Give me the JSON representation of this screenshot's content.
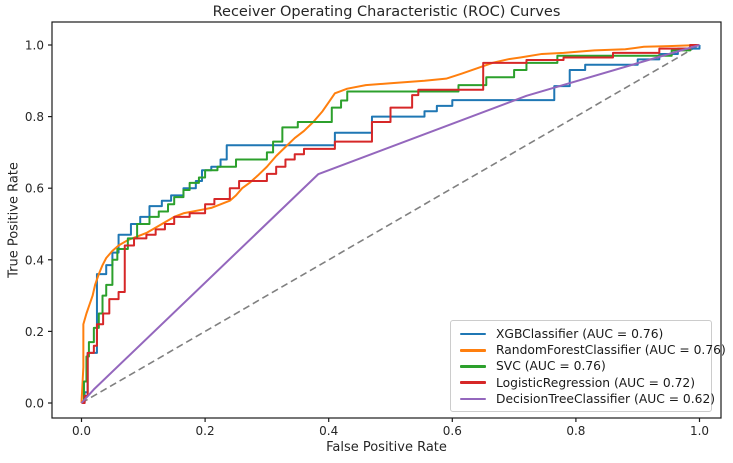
{
  "chart_data": {
    "type": "line",
    "title": "Receiver Operating Characteristic (ROC) Curves",
    "xlabel": "False Positive Rate",
    "ylabel": "True Positive Rate",
    "xlim": [
      -0.05,
      1.05
    ],
    "ylim": [
      -0.05,
      1.05
    ],
    "grid": false,
    "x_ticks": {
      "values": [
        0.0,
        0.2,
        0.4,
        0.6,
        0.8,
        1.0
      ],
      "labels": [
        "0.0",
        "0.2",
        "0.4",
        "0.6",
        "0.8",
        "1.0"
      ]
    },
    "y_ticks": {
      "values": [
        0.0,
        0.2,
        0.4,
        0.6,
        0.8,
        1.0
      ],
      "labels": [
        "0.0",
        "0.2",
        "0.4",
        "0.6",
        "0.8",
        "1.0"
      ]
    },
    "legend": {
      "position": "lower right"
    },
    "baseline": {
      "name": "chance-diagonal",
      "color": "#808080",
      "dash": true,
      "points": [
        [
          0,
          0
        ],
        [
          1,
          1
        ]
      ]
    },
    "series": [
      {
        "name": "XGBClassifier",
        "auc": 0.76,
        "label": "XGBClassifier (AUC = 0.76)",
        "color": "#1f77b4",
        "points": [
          [
            0,
            0
          ],
          [
            0.005,
            0
          ],
          [
            0.005,
            0.03
          ],
          [
            0.01,
            0.03
          ],
          [
            0.01,
            0.14
          ],
          [
            0.025,
            0.14
          ],
          [
            0.025,
            0.36
          ],
          [
            0.04,
            0.36
          ],
          [
            0.04,
            0.385
          ],
          [
            0.05,
            0.385
          ],
          [
            0.05,
            0.42
          ],
          [
            0.06,
            0.42
          ],
          [
            0.06,
            0.47
          ],
          [
            0.08,
            0.47
          ],
          [
            0.08,
            0.5
          ],
          [
            0.095,
            0.5
          ],
          [
            0.095,
            0.52
          ],
          [
            0.11,
            0.52
          ],
          [
            0.11,
            0.55
          ],
          [
            0.13,
            0.55
          ],
          [
            0.13,
            0.565
          ],
          [
            0.145,
            0.565
          ],
          [
            0.145,
            0.58
          ],
          [
            0.165,
            0.58
          ],
          [
            0.165,
            0.6
          ],
          [
            0.185,
            0.6
          ],
          [
            0.185,
            0.62
          ],
          [
            0.195,
            0.62
          ],
          [
            0.195,
            0.65
          ],
          [
            0.21,
            0.65
          ],
          [
            0.21,
            0.66
          ],
          [
            0.225,
            0.66
          ],
          [
            0.225,
            0.68
          ],
          [
            0.235,
            0.68
          ],
          [
            0.235,
            0.72
          ],
          [
            0.41,
            0.72
          ],
          [
            0.41,
            0.755
          ],
          [
            0.47,
            0.755
          ],
          [
            0.47,
            0.8
          ],
          [
            0.555,
            0.8
          ],
          [
            0.555,
            0.815
          ],
          [
            0.575,
            0.815
          ],
          [
            0.575,
            0.83
          ],
          [
            0.6,
            0.83
          ],
          [
            0.6,
            0.846
          ],
          [
            0.765,
            0.846
          ],
          [
            0.765,
            0.885
          ],
          [
            0.79,
            0.885
          ],
          [
            0.79,
            0.93
          ],
          [
            0.815,
            0.93
          ],
          [
            0.815,
            0.945
          ],
          [
            0.9,
            0.945
          ],
          [
            0.9,
            0.96
          ],
          [
            0.935,
            0.96
          ],
          [
            0.935,
            0.975
          ],
          [
            0.965,
            0.975
          ],
          [
            0.965,
            0.99
          ],
          [
            1,
            0.99
          ],
          [
            1,
            1
          ]
        ]
      },
      {
        "name": "RandomForestClassifier",
        "auc": 0.76,
        "label": "RandomForestClassifier (AUC = 0.76)",
        "color": "#ff7f0e",
        "points": [
          [
            0,
            0
          ],
          [
            0.003,
            0.1
          ],
          [
            0.003,
            0.22
          ],
          [
            0.008,
            0.25
          ],
          [
            0.012,
            0.27
          ],
          [
            0.018,
            0.3
          ],
          [
            0.022,
            0.33
          ],
          [
            0.028,
            0.36
          ],
          [
            0.034,
            0.385
          ],
          [
            0.04,
            0.405
          ],
          [
            0.05,
            0.425
          ],
          [
            0.06,
            0.44
          ],
          [
            0.075,
            0.455
          ],
          [
            0.09,
            0.465
          ],
          [
            0.105,
            0.475
          ],
          [
            0.12,
            0.49
          ],
          [
            0.135,
            0.505
          ],
          [
            0.15,
            0.52
          ],
          [
            0.165,
            0.53
          ],
          [
            0.18,
            0.535
          ],
          [
            0.195,
            0.54
          ],
          [
            0.21,
            0.545
          ],
          [
            0.225,
            0.555
          ],
          [
            0.24,
            0.565
          ],
          [
            0.25,
            0.58
          ],
          [
            0.26,
            0.6
          ],
          [
            0.272,
            0.615
          ],
          [
            0.285,
            0.635
          ],
          [
            0.3,
            0.66
          ],
          [
            0.315,
            0.69
          ],
          [
            0.33,
            0.715
          ],
          [
            0.345,
            0.74
          ],
          [
            0.36,
            0.76
          ],
          [
            0.375,
            0.785
          ],
          [
            0.39,
            0.815
          ],
          [
            0.4,
            0.84
          ],
          [
            0.41,
            0.865
          ],
          [
            0.43,
            0.878
          ],
          [
            0.46,
            0.888
          ],
          [
            0.5,
            0.893
          ],
          [
            0.555,
            0.9
          ],
          [
            0.59,
            0.906
          ],
          [
            0.615,
            0.92
          ],
          [
            0.64,
            0.935
          ],
          [
            0.665,
            0.95
          ],
          [
            0.69,
            0.96
          ],
          [
            0.71,
            0.965
          ],
          [
            0.745,
            0.975
          ],
          [
            0.78,
            0.978
          ],
          [
            0.83,
            0.985
          ],
          [
            0.88,
            0.988
          ],
          [
            0.91,
            0.995
          ],
          [
            0.95,
            0.997
          ],
          [
            1,
            1
          ]
        ]
      },
      {
        "name": "SVC",
        "auc": 0.76,
        "label": "SVC (AUC = 0.76)",
        "color": "#2ca02c",
        "points": [
          [
            0,
            0
          ],
          [
            0.004,
            0
          ],
          [
            0.004,
            0.06
          ],
          [
            0.008,
            0.06
          ],
          [
            0.008,
            0.13
          ],
          [
            0.012,
            0.13
          ],
          [
            0.012,
            0.17
          ],
          [
            0.02,
            0.17
          ],
          [
            0.02,
            0.21
          ],
          [
            0.028,
            0.21
          ],
          [
            0.028,
            0.25
          ],
          [
            0.034,
            0.25
          ],
          [
            0.034,
            0.3
          ],
          [
            0.04,
            0.3
          ],
          [
            0.04,
            0.33
          ],
          [
            0.05,
            0.33
          ],
          [
            0.05,
            0.4
          ],
          [
            0.058,
            0.4
          ],
          [
            0.058,
            0.43
          ],
          [
            0.075,
            0.43
          ],
          [
            0.075,
            0.46
          ],
          [
            0.09,
            0.46
          ],
          [
            0.09,
            0.5
          ],
          [
            0.11,
            0.5
          ],
          [
            0.11,
            0.52
          ],
          [
            0.125,
            0.52
          ],
          [
            0.125,
            0.535
          ],
          [
            0.14,
            0.535
          ],
          [
            0.14,
            0.555
          ],
          [
            0.15,
            0.555
          ],
          [
            0.15,
            0.575
          ],
          [
            0.165,
            0.575
          ],
          [
            0.165,
            0.595
          ],
          [
            0.175,
            0.595
          ],
          [
            0.175,
            0.615
          ],
          [
            0.19,
            0.615
          ],
          [
            0.19,
            0.63
          ],
          [
            0.2,
            0.63
          ],
          [
            0.2,
            0.65
          ],
          [
            0.22,
            0.65
          ],
          [
            0.22,
            0.66
          ],
          [
            0.25,
            0.66
          ],
          [
            0.25,
            0.68
          ],
          [
            0.3,
            0.68
          ],
          [
            0.3,
            0.7
          ],
          [
            0.31,
            0.7
          ],
          [
            0.31,
            0.73
          ],
          [
            0.325,
            0.73
          ],
          [
            0.325,
            0.77
          ],
          [
            0.35,
            0.77
          ],
          [
            0.35,
            0.785
          ],
          [
            0.405,
            0.785
          ],
          [
            0.405,
            0.825
          ],
          [
            0.42,
            0.825
          ],
          [
            0.42,
            0.845
          ],
          [
            0.43,
            0.845
          ],
          [
            0.43,
            0.87
          ],
          [
            0.61,
            0.87
          ],
          [
            0.61,
            0.888
          ],
          [
            0.655,
            0.888
          ],
          [
            0.655,
            0.91
          ],
          [
            0.7,
            0.91
          ],
          [
            0.7,
            0.93
          ],
          [
            0.72,
            0.93
          ],
          [
            0.72,
            0.95
          ],
          [
            0.77,
            0.95
          ],
          [
            0.77,
            0.97
          ],
          [
            0.955,
            0.97
          ],
          [
            0.955,
            0.985
          ],
          [
            0.985,
            0.985
          ],
          [
            0.985,
            1
          ],
          [
            1,
            1
          ]
        ]
      },
      {
        "name": "LogisticRegression",
        "auc": 0.72,
        "label": "LogisticRegression (AUC = 0.72)",
        "color": "#d62728",
        "points": [
          [
            0,
            0
          ],
          [
            0.005,
            0
          ],
          [
            0.005,
            0.02
          ],
          [
            0.01,
            0.02
          ],
          [
            0.01,
            0.14
          ],
          [
            0.02,
            0.14
          ],
          [
            0.02,
            0.16
          ],
          [
            0.025,
            0.16
          ],
          [
            0.025,
            0.22
          ],
          [
            0.035,
            0.22
          ],
          [
            0.035,
            0.25
          ],
          [
            0.045,
            0.25
          ],
          [
            0.045,
            0.29
          ],
          [
            0.06,
            0.29
          ],
          [
            0.06,
            0.31
          ],
          [
            0.07,
            0.31
          ],
          [
            0.07,
            0.44
          ],
          [
            0.085,
            0.44
          ],
          [
            0.085,
            0.46
          ],
          [
            0.105,
            0.46
          ],
          [
            0.105,
            0.47
          ],
          [
            0.12,
            0.47
          ],
          [
            0.12,
            0.485
          ],
          [
            0.135,
            0.485
          ],
          [
            0.135,
            0.5
          ],
          [
            0.15,
            0.5
          ],
          [
            0.15,
            0.52
          ],
          [
            0.175,
            0.52
          ],
          [
            0.175,
            0.53
          ],
          [
            0.2,
            0.53
          ],
          [
            0.2,
            0.555
          ],
          [
            0.215,
            0.555
          ],
          [
            0.215,
            0.57
          ],
          [
            0.24,
            0.57
          ],
          [
            0.24,
            0.6
          ],
          [
            0.255,
            0.6
          ],
          [
            0.255,
            0.62
          ],
          [
            0.3,
            0.62
          ],
          [
            0.3,
            0.64
          ],
          [
            0.315,
            0.64
          ],
          [
            0.315,
            0.66
          ],
          [
            0.33,
            0.66
          ],
          [
            0.33,
            0.68
          ],
          [
            0.345,
            0.68
          ],
          [
            0.345,
            0.695
          ],
          [
            0.36,
            0.695
          ],
          [
            0.36,
            0.71
          ],
          [
            0.41,
            0.71
          ],
          [
            0.41,
            0.73
          ],
          [
            0.47,
            0.73
          ],
          [
            0.47,
            0.785
          ],
          [
            0.5,
            0.785
          ],
          [
            0.5,
            0.825
          ],
          [
            0.535,
            0.825
          ],
          [
            0.535,
            0.86
          ],
          [
            0.545,
            0.86
          ],
          [
            0.545,
            0.875
          ],
          [
            0.65,
            0.875
          ],
          [
            0.65,
            0.95
          ],
          [
            0.72,
            0.95
          ],
          [
            0.72,
            0.958
          ],
          [
            0.78,
            0.958
          ],
          [
            0.78,
            0.965
          ],
          [
            0.86,
            0.965
          ],
          [
            0.86,
            0.978
          ],
          [
            0.935,
            0.978
          ],
          [
            0.935,
            0.99
          ],
          [
            0.985,
            0.99
          ],
          [
            0.985,
            1
          ],
          [
            1,
            1
          ]
        ]
      },
      {
        "name": "DecisionTreeClassifier",
        "auc": 0.62,
        "label": "DecisionTreeClassifier (AUC = 0.62)",
        "color": "#9467bd",
        "points": [
          [
            0,
            0
          ],
          [
            0.02,
            0.038
          ],
          [
            0.383,
            0.639
          ],
          [
            0.72,
            0.858
          ],
          [
            1,
            1
          ]
        ]
      }
    ]
  }
}
